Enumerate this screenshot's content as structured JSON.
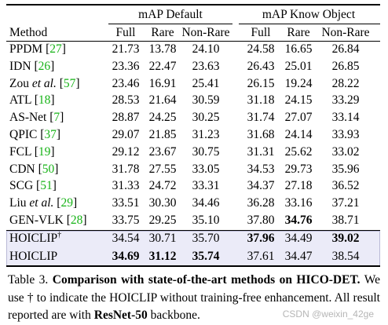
{
  "table": {
    "groups": [
      "mAP Default",
      "mAP Know Object"
    ],
    "columns": [
      "Method",
      "Full",
      "Rare",
      "Non-Rare",
      "Full",
      "Rare",
      "Non-Rare"
    ],
    "cite_brackets": [
      "[",
      "]"
    ],
    "rows": [
      {
        "method": "PPDM",
        "cite": "27",
        "values": [
          "21.73",
          "13.78",
          "24.10",
          "24.58",
          "16.65",
          "26.84"
        ],
        "bold": []
      },
      {
        "method": "IDN",
        "cite": "26",
        "values": [
          "23.36",
          "22.47",
          "23.63",
          "26.43",
          "25.01",
          "26.85"
        ],
        "bold": []
      },
      {
        "method": "Zou",
        "italic": "et al.",
        "cite": "57",
        "values": [
          "23.46",
          "16.91",
          "25.41",
          "26.15",
          "19.24",
          "28.22"
        ],
        "bold": []
      },
      {
        "method": "ATL",
        "cite": "18",
        "values": [
          "28.53",
          "21.64",
          "30.59",
          "31.18",
          "24.15",
          "33.29"
        ],
        "bold": []
      },
      {
        "method": "AS-Net",
        "cite": "7",
        "values": [
          "28.87",
          "24.25",
          "30.25",
          "31.74",
          "27.07",
          "33.14"
        ],
        "bold": []
      },
      {
        "method": "QPIC",
        "cite": "37",
        "values": [
          "29.07",
          "21.85",
          "31.23",
          "31.68",
          "24.14",
          "33.93"
        ],
        "bold": []
      },
      {
        "method": "FCL",
        "cite": "19",
        "values": [
          "29.12",
          "23.67",
          "30.75",
          "31.31",
          "25.62",
          "33.02"
        ],
        "bold": []
      },
      {
        "method": "CDN",
        "cite": "50",
        "values": [
          "31.78",
          "27.55",
          "33.05",
          "34.53",
          "29.73",
          "35.96"
        ],
        "bold": []
      },
      {
        "method": "SCG",
        "cite": "51",
        "values": [
          "31.33",
          "24.72",
          "33.31",
          "34.37",
          "27.18",
          "36.52"
        ],
        "bold": []
      },
      {
        "method": "Liu",
        "italic": "et al.",
        "cite": "29",
        "values": [
          "33.51",
          "30.30",
          "34.46",
          "36.28",
          "33.16",
          "37.21"
        ],
        "bold": []
      },
      {
        "method": "GEN-VLK",
        "cite": "28",
        "values": [
          "33.75",
          "29.25",
          "35.10",
          "37.80",
          "34.76",
          "38.71"
        ],
        "bold": [
          4
        ]
      },
      {
        "method": "HOICLIP",
        "sup": "†",
        "values": [
          "34.54",
          "30.71",
          "35.70",
          "37.96",
          "34.49",
          "39.02"
        ],
        "bold": [
          3,
          5
        ]
      },
      {
        "method": "HOICLIP",
        "values": [
          "34.69",
          "31.12",
          "35.74",
          "37.61",
          "34.47",
          "38.54"
        ],
        "bold": [
          0,
          1,
          2
        ]
      }
    ]
  },
  "caption": [
    {
      "text": "Table 3. ",
      "bold": false
    },
    {
      "text": "Comparison with state-of-the-art methods on HICO-DET.",
      "bold": true
    },
    {
      "text": " We use † to indicate the HOICLIP without training-free enhancement. All result reported are with ",
      "bold": false
    },
    {
      "text": "ResNet-50",
      "bold": true
    },
    {
      "text": " backbone.",
      "bold": false
    }
  ],
  "watermark": "CSDN @weixin_42ge"
}
